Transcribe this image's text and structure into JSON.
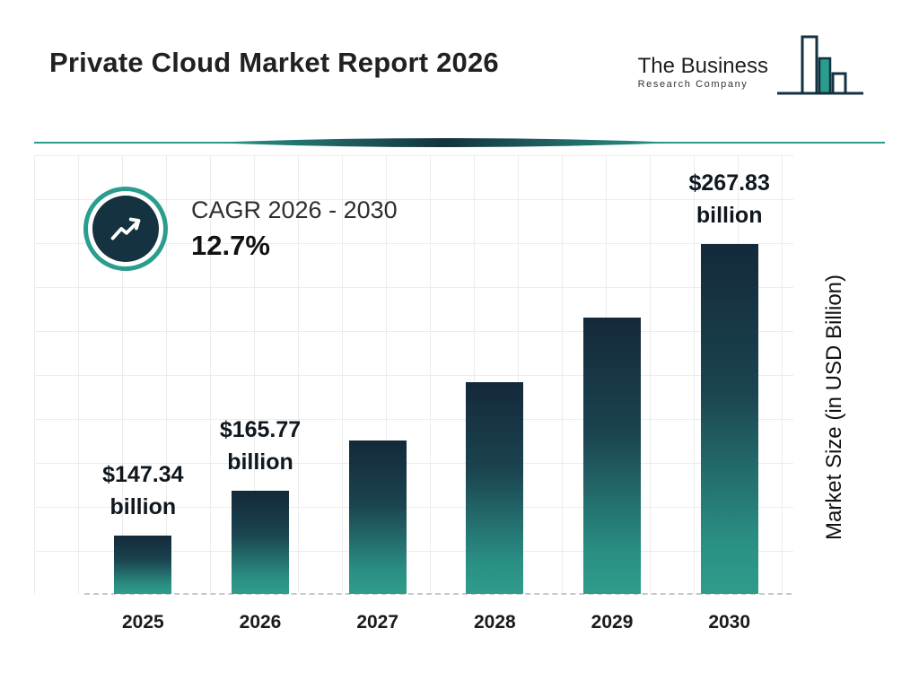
{
  "header": {
    "title": "Private Cloud Market Report 2026",
    "logo": {
      "name_line1": "The Business",
      "name_line2": "Research Company"
    }
  },
  "cagr_badge": {
    "label": "CAGR 2026 - 2030",
    "value": "12.7%",
    "icon": "trending-up-icon"
  },
  "colors": {
    "teal_accent": "#2A9D8F",
    "dark_navy": "#14323F",
    "bar_gradient_top": "#14293A",
    "bar_gradient_bottom": "#2F9C8B",
    "grid_line": "#ECECEC"
  },
  "chart_data": {
    "type": "bar",
    "title": "Private Cloud Market Report 2026",
    "categories": [
      "2025",
      "2026",
      "2027",
      "2028",
      "2029",
      "2030"
    ],
    "values": [
      147.34,
      165.77,
      186.8,
      210.6,
      237.3,
      267.83
    ],
    "bar_labels": {
      "2025": {
        "amount": "$147.34",
        "unit": "billion"
      },
      "2026": {
        "amount": "$165.77",
        "unit": "billion"
      },
      "2030": {
        "amount": "$267.83",
        "unit": "billion"
      }
    },
    "xlabel": "",
    "ylabel": "Market Size (in USD Billion)",
    "grid": true,
    "legend": false,
    "baseline_style": "dashed"
  }
}
